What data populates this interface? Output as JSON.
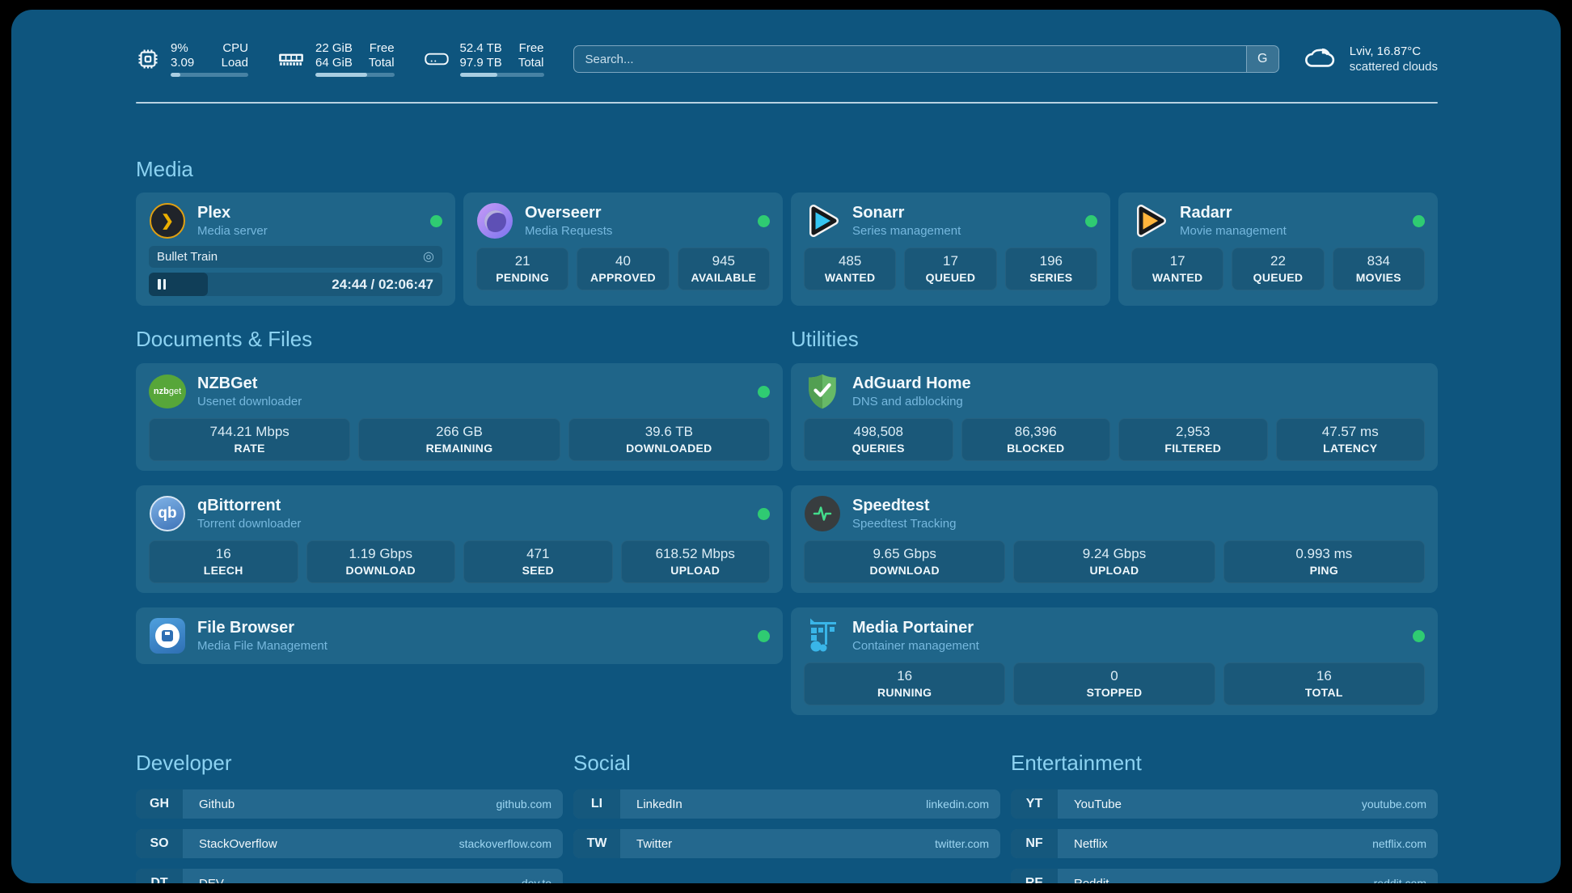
{
  "colors": {
    "status_online": "#2fcb72",
    "heading": "#8cd2f1",
    "panel_bg": "#0e557e"
  },
  "header": {
    "stats": [
      {
        "icon": "cpu-icon",
        "v1": "9%",
        "v2": "3.09",
        "l1": "CPU",
        "l2": "Load",
        "bar": 12
      },
      {
        "icon": "memory-icon",
        "v1": "22 GiB",
        "v2": "64 GiB",
        "l1": "Free",
        "l2": "Total",
        "bar": 66
      },
      {
        "icon": "disk-icon",
        "v1": "52.4 TB",
        "v2": "97.9 TB",
        "l1": "Free",
        "l2": "Total",
        "bar": 45
      }
    ],
    "search": {
      "placeholder": "Search...",
      "button": "G"
    },
    "weather": {
      "location_temp": "Lviv, 16.87°C",
      "condition": "scattered clouds"
    }
  },
  "media": {
    "heading": "Media",
    "plex": {
      "title": "Plex",
      "subtitle": "Media server",
      "now_playing": "Bullet Train",
      "time": "24:44 / 02:06:47",
      "progress_percent": 20,
      "transcode_glyph": "◎",
      "chevron_glyph": "❯"
    },
    "overseerr": {
      "title": "Overseerr",
      "subtitle": "Media Requests",
      "stats": [
        {
          "value": "21",
          "label": "PENDING"
        },
        {
          "value": "40",
          "label": "APPROVED"
        },
        {
          "value": "945",
          "label": "AVAILABLE"
        }
      ]
    },
    "sonarr": {
      "title": "Sonarr",
      "subtitle": "Series management",
      "stats": [
        {
          "value": "485",
          "label": "WANTED"
        },
        {
          "value": "17",
          "label": "QUEUED"
        },
        {
          "value": "196",
          "label": "SERIES"
        }
      ]
    },
    "radarr": {
      "title": "Radarr",
      "subtitle": "Movie management",
      "stats": [
        {
          "value": "17",
          "label": "WANTED"
        },
        {
          "value": "22",
          "label": "QUEUED"
        },
        {
          "value": "834",
          "label": "MOVIES"
        }
      ]
    }
  },
  "documents": {
    "heading": "Documents & Files",
    "nzbget": {
      "title": "NZBGet",
      "subtitle": "Usenet downloader",
      "icon_text_bold": "nzb",
      "icon_text_light": "get",
      "stats": [
        {
          "value": "744.21 Mbps",
          "label": "RATE"
        },
        {
          "value": "266 GB",
          "label": "REMAINING"
        },
        {
          "value": "39.6 TB",
          "label": "DOWNLOADED"
        }
      ]
    },
    "qbittorrent": {
      "title": "qBittorrent",
      "subtitle": "Torrent downloader",
      "icon_text": "qb",
      "stats": [
        {
          "value": "16",
          "label": "LEECH"
        },
        {
          "value": "1.19 Gbps",
          "label": "DOWNLOAD"
        },
        {
          "value": "471",
          "label": "SEED"
        },
        {
          "value": "618.52 Mbps",
          "label": "UPLOAD"
        }
      ]
    },
    "filebrowser": {
      "title": "File Browser",
      "subtitle": "Media File Management"
    }
  },
  "utilities": {
    "heading": "Utilities",
    "adguard": {
      "title": "AdGuard Home",
      "subtitle": "DNS and adblocking",
      "stats": [
        {
          "value": "498,508",
          "label": "QUERIES"
        },
        {
          "value": "86,396",
          "label": "BLOCKED"
        },
        {
          "value": "2,953",
          "label": "FILTERED"
        },
        {
          "value": "47.57 ms",
          "label": "LATENCY"
        }
      ]
    },
    "speedtest": {
      "title": "Speedtest",
      "subtitle": "Speedtest Tracking",
      "stats": [
        {
          "value": "9.65 Gbps",
          "label": "DOWNLOAD"
        },
        {
          "value": "9.24 Gbps",
          "label": "UPLOAD"
        },
        {
          "value": "0.993 ms",
          "label": "PING"
        }
      ]
    },
    "portainer": {
      "title": "Media Portainer",
      "subtitle": "Container management",
      "stats": [
        {
          "value": "16",
          "label": "RUNNING"
        },
        {
          "value": "0",
          "label": "STOPPED"
        },
        {
          "value": "16",
          "label": "TOTAL"
        }
      ]
    }
  },
  "bookmarks": {
    "developer": {
      "heading": "Developer",
      "items": [
        {
          "abbr": "GH",
          "name": "Github",
          "url": "github.com"
        },
        {
          "abbr": "SO",
          "name": "StackOverflow",
          "url": "stackoverflow.com"
        },
        {
          "abbr": "DT",
          "name": "DEV",
          "url": "dev.to"
        }
      ]
    },
    "social": {
      "heading": "Social",
      "items": [
        {
          "abbr": "LI",
          "name": "LinkedIn",
          "url": "linkedin.com"
        },
        {
          "abbr": "TW",
          "name": "Twitter",
          "url": "twitter.com"
        }
      ]
    },
    "entertainment": {
      "heading": "Entertainment",
      "items": [
        {
          "abbr": "YT",
          "name": "YouTube",
          "url": "youtube.com"
        },
        {
          "abbr": "NF",
          "name": "Netflix",
          "url": "netflix.com"
        },
        {
          "abbr": "RE",
          "name": "Reddit",
          "url": "reddit.com"
        }
      ]
    }
  }
}
